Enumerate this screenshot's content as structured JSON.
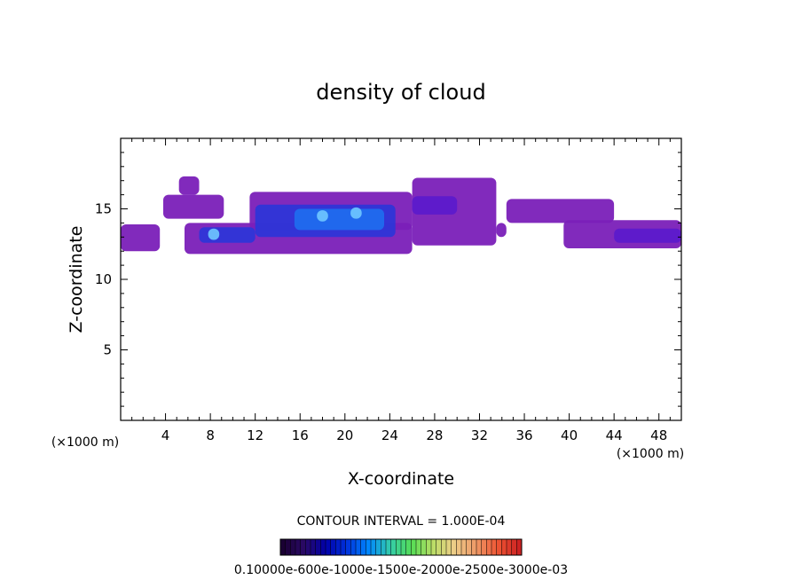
{
  "chart_data": {
    "type": "heatmap",
    "title": "density of cloud",
    "xlabel": "X-coordinate",
    "ylabel": "Z-coordinate",
    "x_unit_left": "(×1000 m)",
    "x_unit_right": "(×1000 m)",
    "xlim": [
      0,
      50
    ],
    "ylim": [
      0,
      20
    ],
    "x_ticks": [
      "4",
      "8",
      "12",
      "16",
      "20",
      "24",
      "28",
      "32",
      "36",
      "40",
      "44",
      "48"
    ],
    "x_tick_values": [
      4,
      8,
      12,
      16,
      20,
      24,
      28,
      32,
      36,
      40,
      44,
      48
    ],
    "y_ticks": [
      "5",
      "10",
      "15"
    ],
    "y_tick_values": [
      5,
      10,
      15
    ],
    "contour_interval_text": "CONTOUR INTERVAL = 1.000E-04",
    "colorbar_label": "0.10000e-600e-1000e-1500e-2000e-2500e-3000e-03",
    "colorbar_colors": [
      "#1a0033",
      "#2a0a66",
      "#0000aa",
      "#0033dd",
      "#0088ff",
      "#33ccaa",
      "#55dd55",
      "#bbdd66",
      "#eecc88",
      "#ee9966",
      "#ee5533",
      "#cc2222"
    ],
    "cloud_regions": [
      {
        "x0": 0.0,
        "x1": 3.5,
        "z0": 12.0,
        "z1": 13.9,
        "level": 0
      },
      {
        "x0": 3.8,
        "x1": 9.2,
        "z0": 14.3,
        "z1": 16.0,
        "level": 0
      },
      {
        "x0": 5.2,
        "x1": 7.0,
        "z0": 16.0,
        "z1": 17.3,
        "level": 0
      },
      {
        "x0": 5.7,
        "x1": 26.0,
        "z0": 11.8,
        "z1": 14.0,
        "level": 0
      },
      {
        "x0": 11.5,
        "x1": 26.0,
        "z0": 13.5,
        "z1": 16.2,
        "level": 0
      },
      {
        "x0": 26.0,
        "x1": 33.5,
        "z0": 12.4,
        "z1": 17.2,
        "level": 0
      },
      {
        "x0": 33.5,
        "x1": 34.4,
        "z0": 13.0,
        "z1": 14.0,
        "level": 0
      },
      {
        "x0": 34.4,
        "x1": 44.0,
        "z0": 14.0,
        "z1": 15.7,
        "level": 0
      },
      {
        "x0": 39.5,
        "x1": 50.0,
        "z0": 12.2,
        "z1": 14.2,
        "level": 0
      },
      {
        "x0": 7.0,
        "x1": 12.0,
        "z0": 12.6,
        "z1": 13.7,
        "level": 2
      },
      {
        "x0": 12.0,
        "x1": 24.5,
        "z0": 13.0,
        "z1": 15.3,
        "level": 2
      },
      {
        "x0": 15.5,
        "x1": 23.5,
        "z0": 13.5,
        "z1": 15.0,
        "level": 3
      },
      {
        "x0": 7.8,
        "x1": 8.8,
        "z0": 12.8,
        "z1": 13.6,
        "level": 4
      },
      {
        "x0": 17.5,
        "x1": 18.5,
        "z0": 14.1,
        "z1": 14.9,
        "level": 4
      },
      {
        "x0": 20.5,
        "x1": 21.5,
        "z0": 14.3,
        "z1": 15.1,
        "level": 4
      },
      {
        "x0": 26.0,
        "x1": 30.0,
        "z0": 14.6,
        "z1": 15.9,
        "level": 1
      },
      {
        "x0": 44.0,
        "x1": 50.0,
        "z0": 12.6,
        "z1": 13.6,
        "level": 1
      }
    ]
  }
}
